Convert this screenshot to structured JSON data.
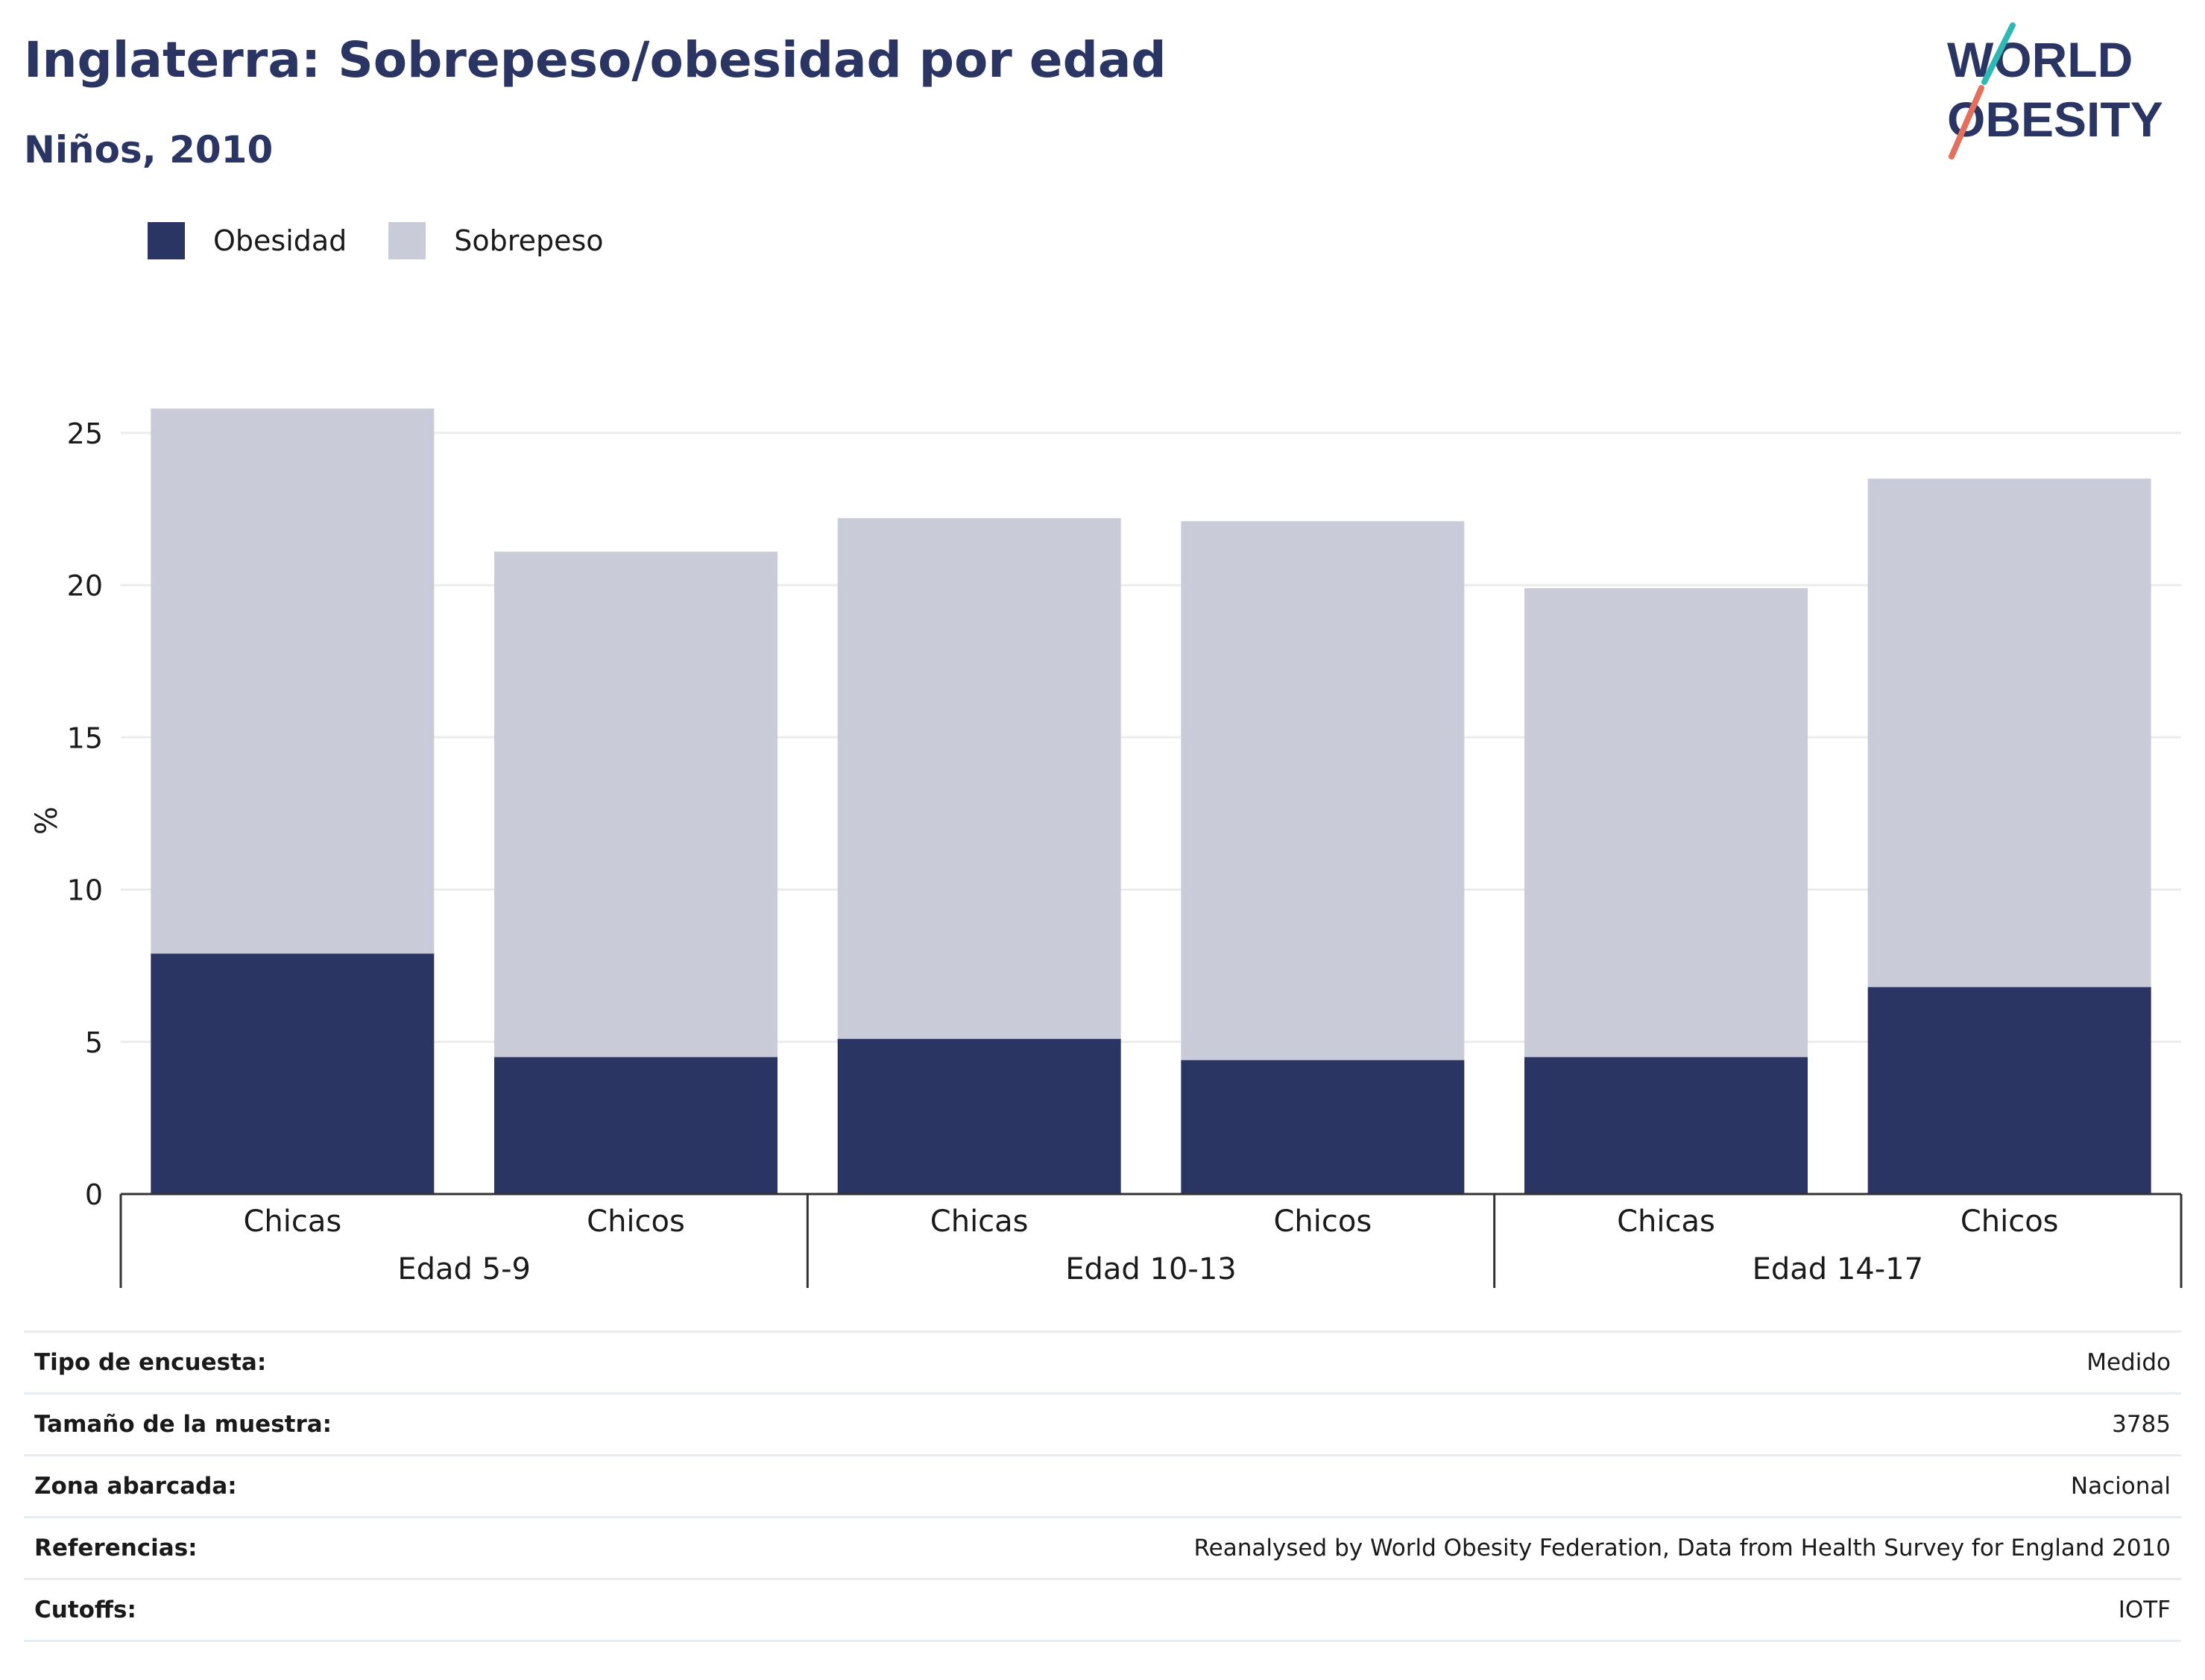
{
  "header": {
    "title": "Inglaterra: Sobrepeso/obesidad por edad",
    "subtitle": "Niños, 2010"
  },
  "logo": {
    "line1": "WORLD",
    "line2": "OBESITY"
  },
  "legend": [
    {
      "label": "Obesidad",
      "color": "#2b3563"
    },
    {
      "label": "Sobrepeso",
      "color": "#cacbd8"
    }
  ],
  "chart_data": {
    "type": "bar",
    "stacked": true,
    "ylabel": "%",
    "ylim": [
      0,
      25
    ],
    "yticks": [
      0,
      5,
      10,
      15,
      20,
      25
    ],
    "grid": true,
    "legend_position": "top-left",
    "groups": [
      {
        "label": "Edad 5-9",
        "categories": [
          "Chicas",
          "Chicos"
        ]
      },
      {
        "label": "Edad 10-13",
        "categories": [
          "Chicas",
          "Chicos"
        ]
      },
      {
        "label": "Edad 14-17",
        "categories": [
          "Chicas",
          "Chicos"
        ]
      }
    ],
    "categories": [
      "Chicas",
      "Chicos",
      "Chicas",
      "Chicos",
      "Chicas",
      "Chicos"
    ],
    "series": [
      {
        "name": "Obesidad",
        "color": "#2b3563",
        "values": [
          7.9,
          4.5,
          5.1,
          4.4,
          4.5,
          6.8
        ]
      },
      {
        "name": "Sobrepeso",
        "color": "#cacbd8",
        "values": [
          17.9,
          16.6,
          17.1,
          17.7,
          15.4,
          16.7
        ]
      }
    ]
  },
  "info": [
    {
      "key": "Tipo de encuesta:",
      "value": "Medido"
    },
    {
      "key": "Tamaño de la muestra:",
      "value": "3785"
    },
    {
      "key": "Zona abarcada:",
      "value": "Nacional"
    },
    {
      "key": "Referencias:",
      "value": "Reanalysed by World Obesity Federation, Data from Health Survey for England 2010"
    },
    {
      "key": "Cutoffs:",
      "value": "IOTF"
    }
  ]
}
